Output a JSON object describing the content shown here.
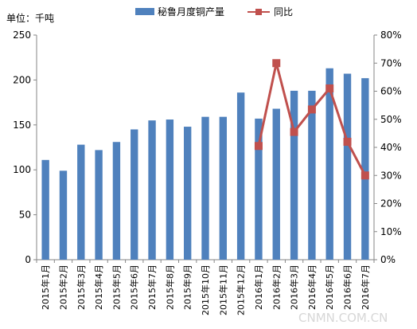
{
  "chart_data": {
    "type": "bar",
    "unit_label": "单位：千吨",
    "categories": [
      "2015年1月",
      "2015年2月",
      "2015年3月",
      "2015年4月",
      "2015年5月",
      "2015年6月",
      "2015年7月",
      "2015年8月",
      "2015年9月",
      "2015年10月",
      "2015年11月",
      "2015年12月",
      "2016年1月",
      "2016年2月",
      "2016年3月",
      "2016年4月",
      "2016年5月",
      "2016年6月",
      "2016年7月"
    ],
    "series": [
      {
        "name": "秘鲁月度铜产量",
        "type": "bar",
        "axis": "left",
        "color": "#4f81bd",
        "values": [
          111,
          99,
          128,
          122,
          131,
          145,
          155,
          156,
          148,
          159,
          159,
          186,
          157,
          168,
          188,
          188,
          213,
          207,
          202
        ]
      },
      {
        "name": "同比",
        "type": "line",
        "axis": "right",
        "color": "#c0504d",
        "values": [
          null,
          null,
          null,
          null,
          null,
          null,
          null,
          null,
          null,
          null,
          null,
          null,
          0.405,
          0.7,
          0.455,
          0.535,
          0.61,
          0.42,
          0.3
        ]
      }
    ],
    "left_axis": {
      "ylim": [
        0,
        250
      ],
      "ticks": [
        "0",
        "50",
        "100",
        "150",
        "200",
        "250"
      ]
    },
    "right_axis": {
      "ylim": [
        0,
        0.8
      ],
      "ticks": [
        "0%",
        "10%",
        "20%",
        "30%",
        "40%",
        "50%",
        "60%",
        "70%",
        "80%"
      ]
    },
    "legend_position": "top-center",
    "grid": false
  },
  "watermark": "CNMN.COM.CN"
}
